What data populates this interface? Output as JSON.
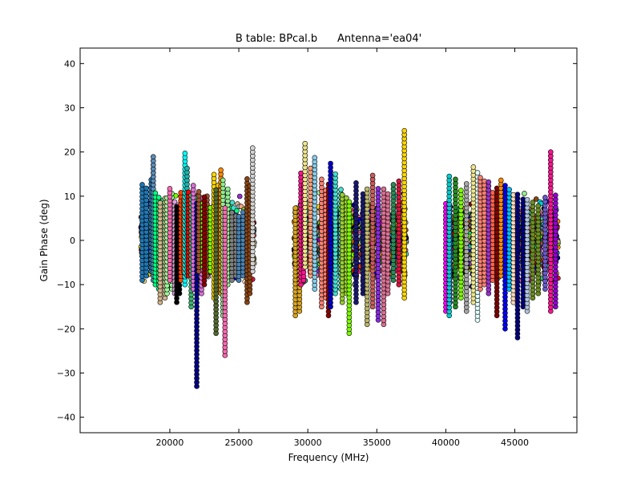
{
  "chart_data": {
    "type": "scatter",
    "title": "B table: BPcal.b      Antenna='ea04'",
    "xlabel": "Frequency (MHz)",
    "ylabel": "Gain Phase (deg)",
    "xlim": [
      13500,
      49500
    ],
    "ylim": [
      -43.5,
      43.5
    ],
    "x_ticks": [
      20000,
      25000,
      30000,
      35000,
      40000,
      45000
    ],
    "x_tick_labels": [
      "20000",
      "25000",
      "30000",
      "35000",
      "40000",
      "45000"
    ],
    "y_ticks": [
      40,
      30,
      20,
      10,
      0,
      -10,
      -20,
      -30,
      -40
    ],
    "y_tick_labels": [
      "40",
      "30",
      "20",
      "10",
      "0",
      "−10",
      "−20",
      "−30",
      "−40"
    ],
    "grid": false,
    "legend": "none",
    "marker": "circle",
    "frequency_bands_mhz": [
      [
        17900,
        26100
      ],
      [
        29000,
        37100
      ],
      [
        40000,
        48100
      ]
    ],
    "series": [
      {
        "color": "#1f77b4",
        "x": [
          18000,
          18300,
          18650
        ],
        "y": [
          [
            -9,
            13
          ],
          [
            -8,
            12
          ],
          [
            -7,
            14
          ]
        ]
      },
      {
        "color": "#5b8db8",
        "x": [
          18800
        ],
        "y": [
          [
            -9,
            19
          ]
        ]
      },
      {
        "color": "#00ff7f",
        "x": [
          18950,
          19200,
          19500
        ],
        "y": [
          [
            -10,
            11
          ],
          [
            -11,
            10
          ],
          [
            -9,
            9
          ]
        ]
      },
      {
        "color": "#d2b48c",
        "x": [
          19300,
          19650
        ],
        "y": [
          [
            -14,
            9
          ],
          [
            -13,
            10
          ]
        ]
      },
      {
        "color": "#98fb98",
        "x": [
          19800,
          20150
        ],
        "y": [
          [
            -12,
            10
          ],
          [
            -11,
            11
          ]
        ]
      },
      {
        "color": "#ff69b4",
        "x": [
          20000
        ],
        "y": [
          [
            -9,
            12
          ]
        ]
      },
      {
        "color": "#dda0dd",
        "x": [
          20350,
          20600
        ],
        "y": [
          [
            -12,
            9
          ],
          [
            -10,
            8
          ]
        ]
      },
      {
        "color": "#000000",
        "x": [
          20500,
          20700
        ],
        "y": [
          [
            -14,
            8
          ],
          [
            -12,
            7
          ]
        ]
      },
      {
        "color": "#ff4500",
        "x": [
          20800,
          21000
        ],
        "y": [
          [
            -9,
            11
          ],
          [
            -7,
            10
          ]
        ]
      },
      {
        "color": "#00ffff",
        "x": [
          21100
        ],
        "y": [
          [
            -10,
            20
          ]
        ]
      },
      {
        "color": "#20b2aa",
        "x": [
          21250
        ],
        "y": [
          [
            -8,
            17
          ]
        ]
      },
      {
        "color": "#ff0000",
        "x": [
          21350
        ],
        "y": [
          [
            -8,
            11
          ]
        ]
      },
      {
        "color": "#3cb371",
        "x": [
          21550
        ],
        "y": [
          [
            -15,
            11
          ]
        ]
      },
      {
        "color": "#da70d6",
        "x": [
          21700,
          22300
        ],
        "y": [
          [
            -11,
            13
          ],
          [
            -12,
            10
          ]
        ]
      },
      {
        "color": "#00008b",
        "x": [
          21950
        ],
        "y": [
          [
            -33,
            9
          ]
        ]
      },
      {
        "color": "#a0522d",
        "x": [
          22100,
          22700
        ],
        "y": [
          [
            -7,
            11
          ],
          [
            -8,
            10
          ]
        ]
      },
      {
        "color": "#7cfc00",
        "x": [
          22400,
          22950
        ],
        "y": [
          [
            -6,
            9
          ],
          [
            -7,
            8
          ]
        ]
      },
      {
        "color": "#8b0000",
        "x": [
          22500
        ],
        "y": [
          [
            -10,
            10
          ]
        ]
      },
      {
        "color": "#ffd700",
        "x": [
          23200,
          23500
        ],
        "y": [
          [
            -13,
            15
          ],
          [
            -11,
            13
          ]
        ]
      },
      {
        "color": "#556b2f",
        "x": [
          23350
        ],
        "y": [
          [
            -21,
            12
          ]
        ]
      },
      {
        "color": "#ff8c00",
        "x": [
          23700
        ],
        "y": [
          [
            -12,
            16
          ]
        ]
      },
      {
        "color": "#90ee90",
        "x": [
          23850,
          24200
        ],
        "y": [
          [
            -17,
            14
          ],
          [
            -10,
            12
          ]
        ]
      },
      {
        "color": "#ff69b4",
        "x": [
          24000
        ],
        "y": [
          [
            -26,
            8
          ]
        ]
      },
      {
        "color": "#808080",
        "x": [
          24500,
          24800
        ],
        "y": [
          [
            -9,
            7
          ],
          [
            -8,
            6
          ]
        ]
      },
      {
        "color": "#4682b4",
        "x": [
          25000,
          25300
        ],
        "y": [
          [
            -9,
            6
          ],
          [
            -8,
            7
          ]
        ]
      },
      {
        "color": "#8b4513",
        "x": [
          25600,
          25800
        ],
        "y": [
          [
            -14,
            14
          ],
          [
            -12,
            13
          ]
        ]
      },
      {
        "color": "#d3d3d3",
        "x": [
          26000
        ],
        "y": [
          [
            -7,
            21
          ]
        ]
      },
      {
        "color": "#daa520",
        "x": [
          29100,
          29400
        ],
        "y": [
          [
            -17,
            8
          ],
          [
            -16,
            7
          ]
        ]
      },
      {
        "color": "#ff1493",
        "x": [
          29500,
          29700
        ],
        "y": [
          [
            -10,
            16
          ],
          [
            -9,
            13
          ]
        ]
      },
      {
        "color": "#f0e68c",
        "x": [
          29800
        ],
        "y": [
          [
            -6,
            22
          ]
        ]
      },
      {
        "color": "#ffa07a",
        "x": [
          30200
        ],
        "y": [
          [
            -8,
            17
          ]
        ]
      },
      {
        "color": "#87ceeb",
        "x": [
          30500
        ],
        "y": [
          [
            -11,
            19
          ]
        ]
      },
      {
        "color": "#fa8072",
        "x": [
          31000,
          31300
        ],
        "y": [
          [
            -15,
            14
          ],
          [
            -13,
            12
          ]
        ]
      },
      {
        "color": "#8b0000",
        "x": [
          31500
        ],
        "y": [
          [
            -17,
            13
          ]
        ]
      },
      {
        "color": "#0000cd",
        "x": [
          31650
        ],
        "y": [
          [
            -15,
            18
          ]
        ]
      },
      {
        "color": "#40e0d0",
        "x": [
          32000,
          32400
        ],
        "y": [
          [
            -12,
            15
          ],
          [
            -11,
            12
          ]
        ]
      },
      {
        "color": "#9acd32",
        "x": [
          32500,
          32800
        ],
        "y": [
          [
            -14,
            11
          ],
          [
            -12,
            10
          ]
        ]
      },
      {
        "color": "#7fff00",
        "x": [
          33000
        ],
        "y": [
          [
            -21,
            9
          ]
        ]
      },
      {
        "color": "#191970",
        "x": [
          33500,
          34000
        ],
        "y": [
          [
            -14,
            13
          ],
          [
            -12,
            11
          ]
        ]
      },
      {
        "color": "#bdb76b",
        "x": [
          34300
        ],
        "y": [
          [
            -19,
            12
          ]
        ]
      },
      {
        "color": "#cd5c5c",
        "x": [
          34700
        ],
        "y": [
          [
            -15,
            15
          ]
        ]
      },
      {
        "color": "#8a2be2",
        "x": [
          35100
        ],
        "y": [
          [
            -18,
            12
          ]
        ]
      },
      {
        "color": "#db7093",
        "x": [
          35500,
          35800
        ],
        "y": [
          [
            -19,
            12
          ],
          [
            -12,
            11
          ]
        ]
      },
      {
        "color": "#2e8b57",
        "x": [
          36200
        ],
        "y": [
          [
            -9,
            13
          ]
        ]
      },
      {
        "color": "#dc143c",
        "x": [
          36600
        ],
        "y": [
          [
            -10,
            14
          ]
        ]
      },
      {
        "color": "#ffd700",
        "x": [
          37000
        ],
        "y": [
          [
            -13,
            25
          ]
        ]
      },
      {
        "color": "#ff00ff",
        "x": [
          40000,
          40300
        ],
        "y": [
          [
            -16,
            9
          ],
          [
            -14,
            8
          ]
        ]
      },
      {
        "color": "#00ced1",
        "x": [
          40250
        ],
        "y": [
          [
            -17,
            15
          ]
        ]
      },
      {
        "color": "#228b22",
        "x": [
          40700
        ],
        "y": [
          [
            -15,
            14
          ]
        ]
      },
      {
        "color": "#7cfc00",
        "x": [
          41100
        ],
        "y": [
          [
            -13,
            12
          ]
        ]
      },
      {
        "color": "#a9a9a9",
        "x": [
          41500
        ],
        "y": [
          [
            -16,
            13
          ]
        ]
      },
      {
        "color": "#f0e68c",
        "x": [
          42000
        ],
        "y": [
          [
            -14,
            17
          ]
        ]
      },
      {
        "color": "#e0ffff",
        "x": [
          42300
        ],
        "y": [
          [
            -18,
            16
          ]
        ]
      },
      {
        "color": "#fa8072",
        "x": [
          42500,
          42800
        ],
        "y": [
          [
            -11,
            15
          ],
          [
            -10,
            14
          ]
        ]
      },
      {
        "color": "#9932cc",
        "x": [
          43100
        ],
        "y": [
          [
            -12,
            14
          ]
        ]
      },
      {
        "color": "#ff6347",
        "x": [
          43400
        ],
        "y": [
          [
            -9,
            11
          ]
        ]
      },
      {
        "color": "#800000",
        "x": [
          43700
        ],
        "y": [
          [
            -17,
            12
          ]
        ]
      },
      {
        "color": "#ff8c00",
        "x": [
          44000
        ],
        "y": [
          [
            -8,
            14
          ]
        ]
      },
      {
        "color": "#0000ff",
        "x": [
          44300
        ],
        "y": [
          [
            -20,
            13
          ]
        ]
      },
      {
        "color": "#00bfff",
        "x": [
          44600
        ],
        "y": [
          [
            -11,
            12
          ]
        ]
      },
      {
        "color": "#ffdab9",
        "x": [
          44900
        ],
        "y": [
          [
            -14,
            11
          ]
        ]
      },
      {
        "color": "#000080",
        "x": [
          45200,
          45600
        ],
        "y": [
          [
            -22,
            11
          ],
          [
            -15,
            10
          ]
        ]
      },
      {
        "color": "#b0c4de",
        "x": [
          45900
        ],
        "y": [
          [
            -16,
            10
          ]
        ]
      },
      {
        "color": "#6b8e23",
        "x": [
          46300,
          46700
        ],
        "y": [
          [
            -13,
            9
          ],
          [
            -12,
            8
          ]
        ]
      },
      {
        "color": "#6a5acd",
        "x": [
          47200
        ],
        "y": [
          [
            -11,
            10
          ]
        ]
      },
      {
        "color": "#ff1493",
        "x": [
          47600
        ],
        "y": [
          [
            -16,
            20
          ]
        ]
      },
      {
        "color": "#9400d3",
        "x": [
          47950
        ],
        "y": [
          [
            -15,
            11
          ]
        ]
      }
    ]
  }
}
